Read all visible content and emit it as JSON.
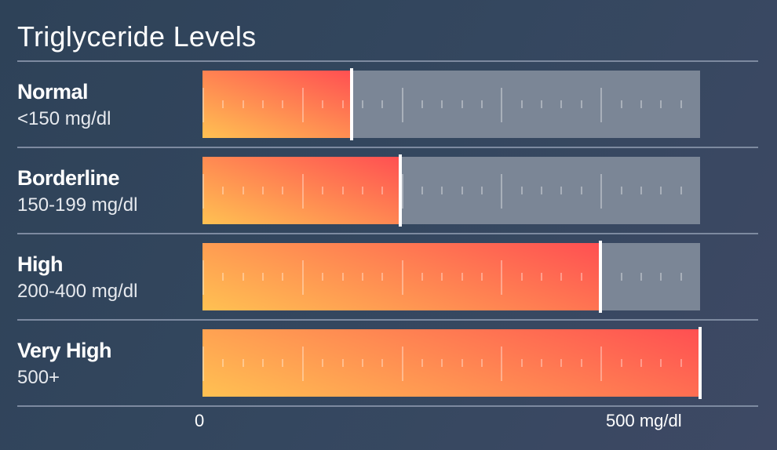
{
  "title": "Triglyceride Levels",
  "chart_data": {
    "type": "bar",
    "orientation": "horizontal",
    "categories": [
      "Normal",
      "Borderline",
      "High",
      "Very High"
    ],
    "ranges": [
      "<150 mg/dl",
      "150-199 mg/dl",
      "200-400 mg/dl",
      "500+"
    ],
    "values": [
      150,
      199,
      400,
      500
    ],
    "xlim": [
      0,
      500
    ],
    "x_tick_labels": [
      "0",
      "500 mg/dl"
    ],
    "major_tick_step": 100,
    "minor_tick_step": 20,
    "colors": {
      "gradient_start": "#ffc152",
      "gradient_end": "#ff4f52",
      "track": "#7b8696",
      "marker": "#ffffff"
    }
  }
}
